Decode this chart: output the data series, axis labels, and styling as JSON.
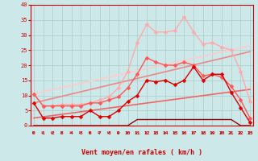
{
  "xlabel": "Vent moyen/en rafales ( km/h )",
  "background_color": "#cce8e8",
  "grid_color": "#b0d0d0",
  "x_ticks": [
    0,
    1,
    2,
    3,
    4,
    5,
    6,
    7,
    8,
    9,
    10,
    11,
    12,
    13,
    14,
    15,
    16,
    17,
    18,
    19,
    20,
    21,
    22,
    23
  ],
  "y_ticks": [
    0,
    5,
    10,
    15,
    20,
    25,
    30,
    35,
    40
  ],
  "xlim": [
    -0.3,
    23.3
  ],
  "ylim": [
    0,
    40
  ],
  "lines": [
    {
      "x": [
        0,
        1,
        2,
        3,
        4,
        5,
        6,
        7,
        8,
        9,
        10,
        11,
        12,
        13,
        14,
        15,
        16,
        17,
        18,
        19,
        20,
        21,
        22,
        23
      ],
      "y": [
        7.5,
        2.5,
        2.5,
        3.0,
        3.0,
        3.0,
        5.0,
        3.0,
        3.0,
        5.0,
        8.0,
        10.0,
        15.0,
        14.5,
        15.0,
        13.5,
        15.0,
        19.5,
        15.0,
        17.0,
        17.0,
        11.0,
        6.0,
        1.0
      ],
      "color": "#dd0000",
      "lw": 1.0,
      "marker": "D",
      "ms": 2.5,
      "zorder": 6
    },
    {
      "x": [
        0,
        1,
        2,
        3,
        4,
        5,
        6,
        7,
        8,
        9,
        10,
        11,
        12,
        13,
        14,
        15,
        16,
        17,
        18,
        19,
        20,
        21,
        22,
        23
      ],
      "y": [
        10.5,
        6.5,
        6.5,
        6.5,
        6.5,
        6.5,
        7.5,
        7.5,
        8.5,
        9.5,
        12.5,
        17.0,
        22.5,
        21.0,
        20.0,
        20.0,
        21.0,
        20.0,
        16.5,
        17.0,
        16.0,
        13.0,
        8.5,
        2.5
      ],
      "color": "#ff5555",
      "lw": 1.0,
      "marker": "D",
      "ms": 2.5,
      "zorder": 5
    },
    {
      "x": [
        0,
        1,
        2,
        3,
        4,
        5,
        6,
        7,
        8,
        9,
        10,
        11,
        12,
        13,
        14,
        15,
        16,
        17,
        18,
        19,
        20,
        21,
        22,
        23
      ],
      "y": [
        10.5,
        6.5,
        6.5,
        7.0,
        7.0,
        7.0,
        7.5,
        8.5,
        9.5,
        12.5,
        18.0,
        27.5,
        33.5,
        31.0,
        31.0,
        31.5,
        36.0,
        31.0,
        27.0,
        27.5,
        26.0,
        25.0,
        18.0,
        8.0
      ],
      "color": "#ffaaaa",
      "lw": 1.0,
      "marker": "D",
      "ms": 2.5,
      "zorder": 4
    },
    {
      "x": [
        0,
        23
      ],
      "y": [
        2.5,
        12.0
      ],
      "color": "#ee6666",
      "lw": 1.2,
      "marker": null,
      "ms": 0,
      "zorder": 2
    },
    {
      "x": [
        0,
        23
      ],
      "y": [
        7.5,
        24.5
      ],
      "color": "#ee8888",
      "lw": 1.2,
      "marker": null,
      "ms": 0,
      "zorder": 2
    },
    {
      "x": [
        0,
        23
      ],
      "y": [
        10.5,
        26.5
      ],
      "color": "#ffcccc",
      "lw": 1.2,
      "marker": null,
      "ms": 0,
      "zorder": 2
    },
    {
      "x": [
        0,
        1,
        2,
        3,
        4,
        5,
        6,
        7,
        8,
        9,
        10,
        11,
        12,
        13,
        14,
        15,
        16,
        17,
        18,
        19,
        20,
        21,
        22,
        23
      ],
      "y": [
        0,
        0,
        0,
        0,
        0,
        0,
        0,
        0,
        0,
        0,
        0,
        2.0,
        2.0,
        2.0,
        2.0,
        2.0,
        2.0,
        2.0,
        2.0,
        2.0,
        2.0,
        2.0,
        0,
        0
      ],
      "color": "#990000",
      "lw": 1.0,
      "marker": null,
      "ms": 0,
      "zorder": 3
    }
  ]
}
